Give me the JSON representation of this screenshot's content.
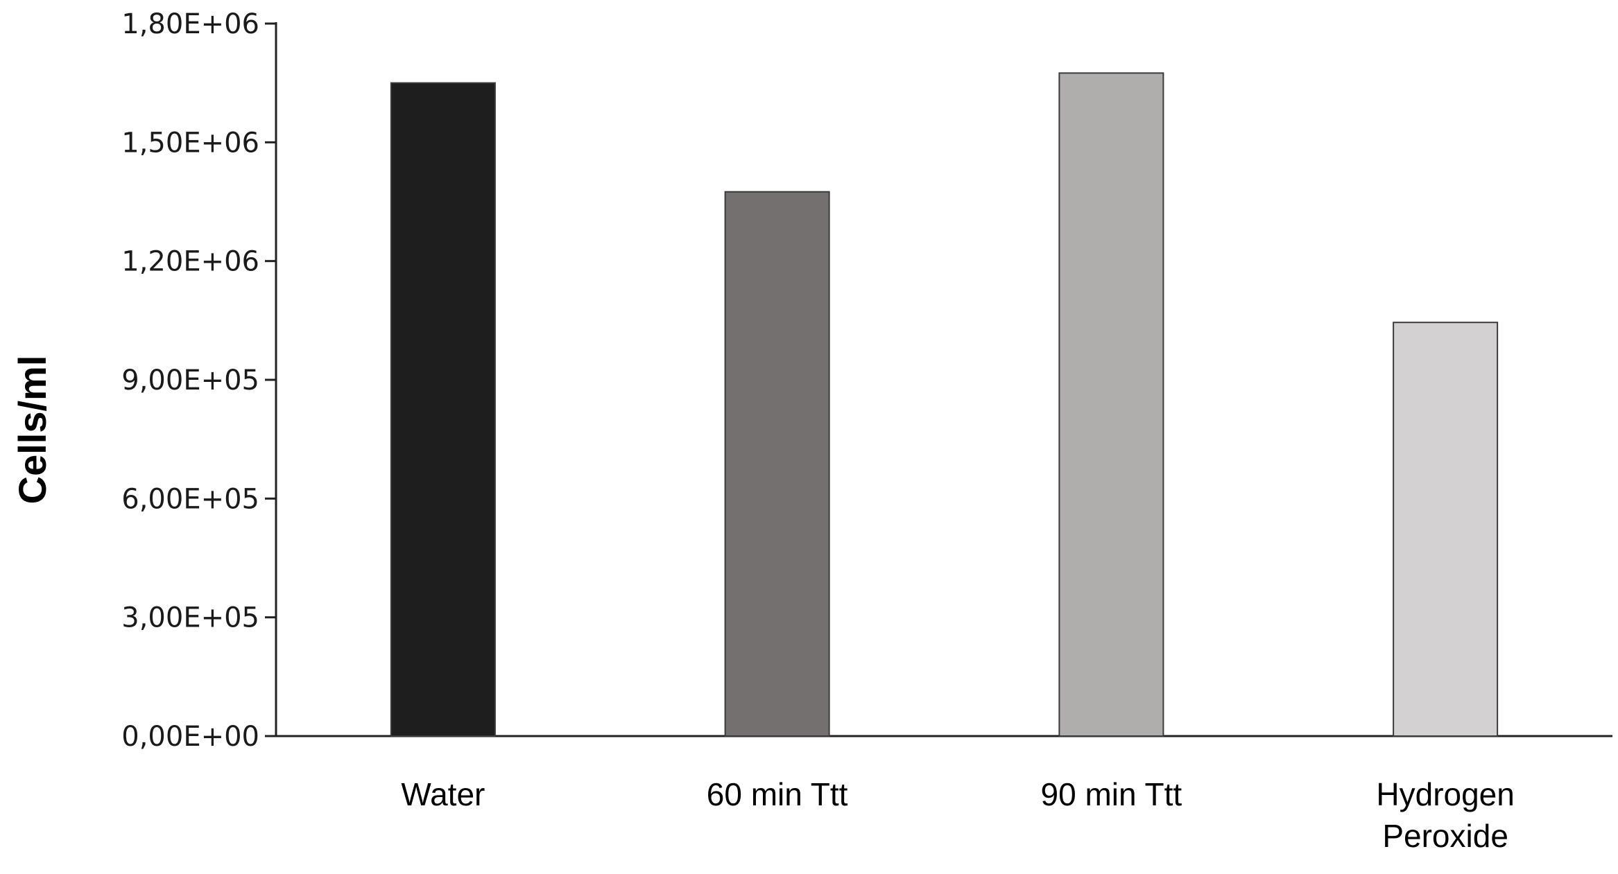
{
  "chart_data": {
    "type": "bar",
    "title": "",
    "xlabel": "",
    "ylabel": "Cells/ml",
    "categories": [
      "Water",
      "60 min Ttt",
      "90 min Ttt",
      "Hydrogen Peroxide"
    ],
    "category_lines": [
      [
        "Water"
      ],
      [
        "60 min Ttt"
      ],
      [
        "90 min Ttt"
      ],
      [
        "Hydrogen",
        "Peroxide"
      ]
    ],
    "values": [
      1650000,
      1375000,
      1675000,
      1045000
    ],
    "ylim": [
      0,
      1800000
    ],
    "yticks": [
      0,
      300000,
      600000,
      900000,
      1200000,
      1500000,
      1800000
    ],
    "ytick_labels": [
      "0,00E+00",
      "3,00E+05",
      "6,00E+05",
      "9,00E+05",
      "1,20E+06",
      "1,50E+06",
      "1,80E+06"
    ],
    "bar_colors": [
      "#1e1e1e",
      "#757070",
      "#b0adad",
      "#d3d1d1"
    ],
    "grid": false,
    "legend": "none"
  }
}
